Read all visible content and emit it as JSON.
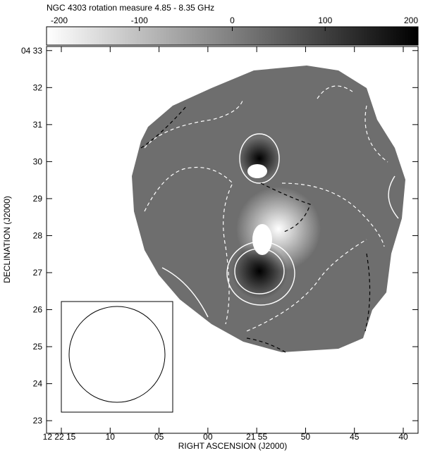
{
  "chart_data": {
    "type": "image",
    "title": "NGC 4303 rotation measure 4.85 - 8.35 GHz",
    "xlabel": "RIGHT ASCENSION (J2000)",
    "ylabel": "DECLINATION (J2000)",
    "colorbar": {
      "lim": [
        -200,
        200
      ],
      "ticks": [
        -200,
        -100,
        0,
        100,
        200
      ],
      "colors": [
        "#ffffff",
        "#000000"
      ]
    },
    "xticks": [
      "12 22 15",
      "10",
      "05",
      "00",
      "21 55",
      "50",
      "45",
      "40"
    ],
    "ylim": [
      22.66,
      33.11
    ],
    "yticks": [
      {
        "value": 33,
        "label": "04 33"
      },
      32,
      31,
      30,
      29,
      28,
      27,
      26,
      25,
      24,
      23
    ]
  }
}
